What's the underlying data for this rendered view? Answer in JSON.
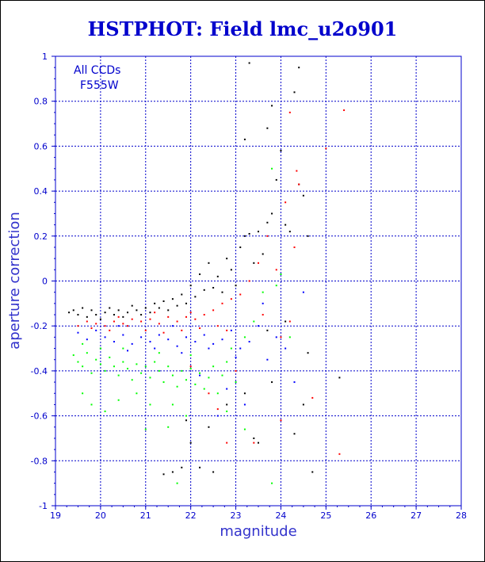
{
  "chart_data": {
    "type": "scatter",
    "title": "HSTPHOT: Field lmc_u2o901",
    "xlabel": "magnitude",
    "ylabel": "aperture correction",
    "xlim": [
      19,
      28
    ],
    "ylim": [
      -1,
      1
    ],
    "xticks": [
      "19",
      "20",
      "21",
      "22",
      "23",
      "24",
      "25",
      "26",
      "27",
      "28"
    ],
    "yticks": [
      "-1",
      "-0.8",
      "-0.6",
      "-0.4",
      "-0.2",
      "0",
      "0.2",
      "0.4",
      "0.6",
      "0.8",
      "1"
    ],
    "grid": true,
    "annotations": [
      "All CCDs",
      "F555W"
    ],
    "series": [
      {
        "color": "#000000",
        "points": [
          [
            19.3,
            -0.14
          ],
          [
            19.4,
            -0.13
          ],
          [
            19.5,
            -0.15
          ],
          [
            19.6,
            -0.12
          ],
          [
            19.7,
            -0.16
          ],
          [
            19.8,
            -0.13
          ],
          [
            19.9,
            -0.15
          ],
          [
            20.0,
            -0.17
          ],
          [
            20.1,
            -0.14
          ],
          [
            20.2,
            -0.12
          ],
          [
            20.3,
            -0.15
          ],
          [
            20.4,
            -0.13
          ],
          [
            20.5,
            -0.16
          ],
          [
            20.6,
            -0.14
          ],
          [
            20.7,
            -0.11
          ],
          [
            20.8,
            -0.13
          ],
          [
            20.9,
            -0.15
          ],
          [
            21.0,
            -0.12
          ],
          [
            21.1,
            -0.14
          ],
          [
            21.2,
            -0.1
          ],
          [
            21.3,
            -0.12
          ],
          [
            21.4,
            -0.09
          ],
          [
            21.5,
            -0.13
          ],
          [
            21.6,
            -0.08
          ],
          [
            21.7,
            -0.11
          ],
          [
            21.8,
            -0.06
          ],
          [
            21.9,
            -0.1
          ],
          [
            22.0,
            -0.02
          ],
          [
            22.1,
            -0.07
          ],
          [
            22.2,
            0.03
          ],
          [
            22.3,
            -0.04
          ],
          [
            22.4,
            0.08
          ],
          [
            22.5,
            -0.03
          ],
          [
            22.6,
            0.02
          ],
          [
            22.7,
            -0.05
          ],
          [
            22.8,
            0.1
          ],
          [
            22.9,
            0.05
          ],
          [
            23.0,
            -0.02
          ],
          [
            23.1,
            0.15
          ],
          [
            23.2,
            0.2
          ],
          [
            23.3,
            0.21
          ],
          [
            23.4,
            0.08
          ],
          [
            23.5,
            0.22
          ],
          [
            23.6,
            0.12
          ],
          [
            23.7,
            0.26
          ],
          [
            23.8,
            0.3
          ],
          [
            23.9,
            0.45
          ],
          [
            24.0,
            0.58
          ],
          [
            24.1,
            0.25
          ],
          [
            24.2,
            0.22
          ],
          [
            24.4,
            0.43
          ],
          [
            24.5,
            0.38
          ],
          [
            24.6,
            0.2
          ],
          [
            24.3,
            0.84
          ],
          [
            24.4,
            0.95
          ],
          [
            23.8,
            0.78
          ],
          [
            23.7,
            0.68
          ],
          [
            23.2,
            0.63
          ],
          [
            23.3,
            0.97
          ],
          [
            21.6,
            -0.85
          ],
          [
            21.8,
            -0.83
          ],
          [
            22.2,
            -0.83
          ],
          [
            22.5,
            -0.85
          ],
          [
            22.4,
            -0.65
          ],
          [
            21.9,
            -0.62
          ],
          [
            22.0,
            -0.72
          ],
          [
            23.5,
            -0.72
          ],
          [
            24.3,
            -0.68
          ],
          [
            24.7,
            -0.85
          ],
          [
            24.5,
            -0.55
          ],
          [
            25.3,
            -0.43
          ],
          [
            21.4,
            -0.86
          ],
          [
            23.7,
            -0.22
          ],
          [
            24.1,
            -0.18
          ],
          [
            24.6,
            -0.32
          ],
          [
            23.8,
            -0.45
          ],
          [
            23.2,
            -0.5
          ],
          [
            22.8,
            -0.55
          ],
          [
            23.4,
            -0.7
          ]
        ]
      },
      {
        "color": "#ff0000",
        "points": [
          [
            19.5,
            -0.2
          ],
          [
            19.7,
            -0.18
          ],
          [
            19.9,
            -0.19
          ],
          [
            20.1,
            -0.2
          ],
          [
            20.3,
            -0.18
          ],
          [
            20.5,
            -0.19
          ],
          [
            20.7,
            -0.17
          ],
          [
            20.9,
            -0.18
          ],
          [
            21.1,
            -0.17
          ],
          [
            21.3,
            -0.19
          ],
          [
            21.5,
            -0.16
          ],
          [
            21.7,
            -0.18
          ],
          [
            21.9,
            -0.16
          ],
          [
            22.1,
            -0.17
          ],
          [
            22.3,
            -0.15
          ],
          [
            22.5,
            -0.13
          ],
          [
            22.7,
            -0.1
          ],
          [
            22.9,
            -0.08
          ],
          [
            23.1,
            -0.06
          ],
          [
            23.3,
            0.0
          ],
          [
            23.5,
            0.08
          ],
          [
            23.7,
            0.2
          ],
          [
            23.9,
            0.05
          ],
          [
            24.1,
            0.35
          ],
          [
            24.2,
            0.75
          ],
          [
            24.35,
            0.49
          ],
          [
            24.4,
            0.43
          ],
          [
            24.3,
            0.15
          ],
          [
            24.2,
            -0.18
          ],
          [
            24.0,
            -0.25
          ],
          [
            25.4,
            0.76
          ],
          [
            25.0,
            0.59
          ],
          [
            24.7,
            -0.52
          ],
          [
            25.3,
            -0.77
          ],
          [
            22.6,
            -0.2
          ],
          [
            22.2,
            -0.21
          ],
          [
            21.8,
            -0.22
          ],
          [
            21.4,
            -0.23
          ],
          [
            21.0,
            -0.22
          ],
          [
            20.6,
            -0.2
          ],
          [
            20.2,
            -0.22
          ],
          [
            19.8,
            -0.21
          ],
          [
            20.4,
            -0.16
          ],
          [
            21.2,
            -0.14
          ],
          [
            22.0,
            -0.14
          ],
          [
            22.8,
            -0.22
          ],
          [
            23.6,
            -0.15
          ],
          [
            22.4,
            -0.5
          ],
          [
            22.6,
            -0.57
          ],
          [
            22.8,
            -0.72
          ],
          [
            23.4,
            -0.72
          ],
          [
            24.0,
            -0.62
          ],
          [
            23.0,
            -0.4
          ],
          [
            22.0,
            -0.38
          ]
        ]
      },
      {
        "color": "#0000ff",
        "points": [
          [
            19.5,
            -0.23
          ],
          [
            19.7,
            -0.26
          ],
          [
            19.9,
            -0.22
          ],
          [
            20.1,
            -0.25
          ],
          [
            20.3,
            -0.27
          ],
          [
            20.5,
            -0.24
          ],
          [
            20.7,
            -0.28
          ],
          [
            20.9,
            -0.25
          ],
          [
            21.1,
            -0.27
          ],
          [
            21.3,
            -0.24
          ],
          [
            21.5,
            -0.26
          ],
          [
            21.7,
            -0.29
          ],
          [
            21.9,
            -0.25
          ],
          [
            22.1,
            -0.27
          ],
          [
            22.3,
            -0.24
          ],
          [
            22.5,
            -0.28
          ],
          [
            22.7,
            -0.26
          ],
          [
            22.9,
            -0.22
          ],
          [
            23.1,
            -0.3
          ],
          [
            23.3,
            -0.27
          ],
          [
            23.5,
            -0.2
          ],
          [
            23.7,
            -0.35
          ],
          [
            23.9,
            -0.25
          ],
          [
            24.1,
            -0.3
          ],
          [
            24.3,
            -0.45
          ],
          [
            20.0,
            -0.3
          ],
          [
            20.6,
            -0.31
          ],
          [
            21.2,
            -0.3
          ],
          [
            21.8,
            -0.32
          ],
          [
            22.4,
            -0.3
          ],
          [
            23.0,
            -0.34
          ],
          [
            22.2,
            -0.42
          ],
          [
            21.6,
            -0.2
          ],
          [
            20.4,
            -0.2
          ],
          [
            22.6,
            -0.6
          ],
          [
            23.2,
            -0.55
          ],
          [
            22.8,
            -0.48
          ],
          [
            24.5,
            -0.05
          ],
          [
            23.6,
            -0.1
          ]
        ]
      },
      {
        "color": "#00ff00",
        "points": [
          [
            19.4,
            -0.33
          ],
          [
            19.5,
            -0.36
          ],
          [
            19.6,
            -0.38
          ],
          [
            19.7,
            -0.32
          ],
          [
            19.8,
            -0.41
          ],
          [
            19.9,
            -0.35
          ],
          [
            20.0,
            -0.37
          ],
          [
            20.1,
            -0.4
          ],
          [
            20.2,
            -0.34
          ],
          [
            20.3,
            -0.38
          ],
          [
            20.4,
            -0.42
          ],
          [
            20.5,
            -0.36
          ],
          [
            20.6,
            -0.39
          ],
          [
            20.7,
            -0.44
          ],
          [
            20.8,
            -0.37
          ],
          [
            20.9,
            -0.41
          ],
          [
            21.0,
            -0.38
          ],
          [
            21.1,
            -0.43
          ],
          [
            21.2,
            -0.36
          ],
          [
            21.3,
            -0.4
          ],
          [
            21.4,
            -0.45
          ],
          [
            21.5,
            -0.38
          ],
          [
            21.6,
            -0.42
          ],
          [
            21.7,
            -0.47
          ],
          [
            21.8,
            -0.4
          ],
          [
            21.9,
            -0.44
          ],
          [
            22.0,
            -0.39
          ],
          [
            22.1,
            -0.46
          ],
          [
            22.2,
            -0.41
          ],
          [
            22.3,
            -0.48
          ],
          [
            22.4,
            -0.43
          ],
          [
            22.5,
            -0.38
          ],
          [
            22.6,
            -0.5
          ],
          [
            22.7,
            -0.42
          ],
          [
            22.8,
            -0.36
          ],
          [
            22.9,
            -0.3
          ],
          [
            23.0,
            -0.45
          ],
          [
            23.2,
            -0.25
          ],
          [
            23.4,
            -0.18
          ],
          [
            23.6,
            -0.05
          ],
          [
            23.8,
            0.5
          ],
          [
            23.9,
            -0.02
          ],
          [
            24.0,
            0.03
          ],
          [
            24.2,
            -0.25
          ],
          [
            23.8,
            -0.9
          ],
          [
            21.7,
            -0.9
          ],
          [
            21.5,
            -0.65
          ],
          [
            21.9,
            -0.6
          ],
          [
            19.6,
            -0.5
          ],
          [
            19.8,
            -0.55
          ],
          [
            20.1,
            -0.58
          ],
          [
            20.4,
            -0.53
          ],
          [
            20.8,
            -0.5
          ],
          [
            21.1,
            -0.55
          ],
          [
            19.6,
            -0.28
          ],
          [
            20.0,
            -0.3
          ],
          [
            20.5,
            -0.3
          ],
          [
            21.3,
            -0.32
          ],
          [
            22.0,
            -0.33
          ],
          [
            22.8,
            -0.58
          ],
          [
            23.2,
            -0.66
          ],
          [
            21.0,
            -0.66
          ],
          [
            21.6,
            -0.55
          ]
        ]
      }
    ]
  }
}
